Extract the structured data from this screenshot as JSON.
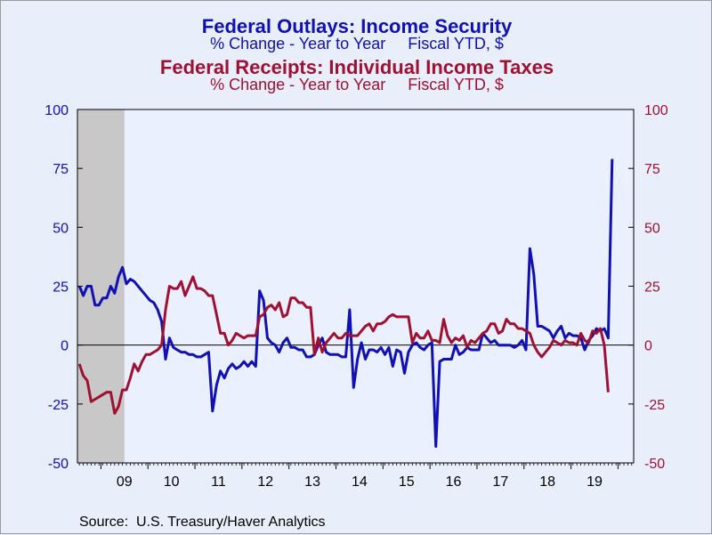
{
  "titles": {
    "series1_title": "Federal Outlays: Income Security",
    "series1_subtitle_left": "% Change - Year to Year",
    "series1_subtitle_right": "Fiscal YTD, $",
    "series2_title": "Federal Receipts: Individual Income Taxes",
    "series2_subtitle_left": "% Change - Year to Year",
    "series2_subtitle_right": "Fiscal YTD, $"
  },
  "source": "Source:  U.S. Treasury/Haver Analytics",
  "colors": {
    "outlays": "#1010b4",
    "receipts": "#a01030",
    "plot_bg": "#ebf0fe",
    "recession": "#c8c8c8"
  },
  "chart_data": {
    "type": "line",
    "x_unit": "month",
    "x_ticks": [
      "09",
      "10",
      "11",
      "12",
      "13",
      "14",
      "15",
      "16",
      "17",
      "18",
      "19"
    ],
    "x_start": "2008-07",
    "x_end": "2020-04",
    "ylim_left": [
      -50,
      100
    ],
    "ylim_right": [
      -50,
      100
    ],
    "y_ticks_left": [
      "100",
      "75",
      "50",
      "25",
      "0",
      "-25",
      "-50"
    ],
    "y_ticks_right": [
      "100",
      "75",
      "50",
      "25",
      "0",
      "-25",
      "-50"
    ],
    "zero_line": true,
    "recession_shading": {
      "start": "2008-07",
      "end": "2009-06"
    },
    "series": [
      {
        "name": "Federal Outlays: Income Security",
        "color": "outlays",
        "axis": "left",
        "points": [
          [
            "2008-07",
            25
          ],
          [
            "2008-08",
            21
          ],
          [
            "2008-09",
            25
          ],
          [
            "2008-10",
            25
          ],
          [
            "2008-11",
            17
          ],
          [
            "2008-12",
            17
          ],
          [
            "2009-01",
            20
          ],
          [
            "2009-02",
            20
          ],
          [
            "2009-03",
            25
          ],
          [
            "2009-04",
            22
          ],
          [
            "2009-05",
            29
          ],
          [
            "2009-06",
            33
          ],
          [
            "2009-07",
            26
          ],
          [
            "2009-08",
            28
          ],
          [
            "2009-09",
            27
          ],
          [
            "2009-10",
            25
          ],
          [
            "2009-11",
            23
          ],
          [
            "2009-12",
            21
          ],
          [
            "2010-01",
            19
          ],
          [
            "2010-02",
            18
          ],
          [
            "2010-03",
            15
          ],
          [
            "2010-04",
            10
          ],
          [
            "2010-05",
            -6
          ],
          [
            "2010-06",
            3
          ],
          [
            "2010-07",
            -1
          ],
          [
            "2010-08",
            -2
          ],
          [
            "2010-09",
            -3
          ],
          [
            "2010-10",
            -3
          ],
          [
            "2010-11",
            -4
          ],
          [
            "2010-12",
            -4
          ],
          [
            "2011-01",
            -5
          ],
          [
            "2011-02",
            -5
          ],
          [
            "2011-03",
            -4
          ],
          [
            "2011-04",
            -3
          ],
          [
            "2011-05",
            -28
          ],
          [
            "2011-06",
            -17
          ],
          [
            "2011-07",
            -11
          ],
          [
            "2011-08",
            -14
          ],
          [
            "2011-09",
            -10
          ],
          [
            "2011-10",
            -8
          ],
          [
            "2011-11",
            -10
          ],
          [
            "2011-12",
            -9
          ],
          [
            "2012-01",
            -7
          ],
          [
            "2012-02",
            -9
          ],
          [
            "2012-03",
            -7
          ],
          [
            "2012-04",
            -9
          ],
          [
            "2012-05",
            23
          ],
          [
            "2012-06",
            19
          ],
          [
            "2012-07",
            3
          ],
          [
            "2012-08",
            1
          ],
          [
            "2012-09",
            0
          ],
          [
            "2012-10",
            -3
          ],
          [
            "2012-11",
            1
          ],
          [
            "2012-12",
            3
          ],
          [
            "2013-01",
            -1
          ],
          [
            "2013-02",
            -1
          ],
          [
            "2013-03",
            -2
          ],
          [
            "2013-04",
            -2
          ],
          [
            "2013-05",
            -5
          ],
          [
            "2013-06",
            -5
          ],
          [
            "2013-07",
            -4
          ],
          [
            "2013-08",
            0
          ],
          [
            "2013-09",
            3
          ],
          [
            "2013-10",
            -3
          ],
          [
            "2013-11",
            -4
          ],
          [
            "2013-12",
            -4
          ],
          [
            "2014-01",
            -4
          ],
          [
            "2014-02",
            -5
          ],
          [
            "2014-03",
            -5
          ],
          [
            "2014-04",
            15
          ],
          [
            "2014-05",
            -18
          ],
          [
            "2014-06",
            -6
          ],
          [
            "2014-07",
            1
          ],
          [
            "2014-08",
            -6
          ],
          [
            "2014-09",
            -2
          ],
          [
            "2014-10",
            -2
          ],
          [
            "2014-11",
            -3
          ],
          [
            "2014-12",
            -1
          ],
          [
            "2015-01",
            -4
          ],
          [
            "2015-02",
            -1
          ],
          [
            "2015-03",
            -9
          ],
          [
            "2015-04",
            -2
          ],
          [
            "2015-05",
            -3
          ],
          [
            "2015-06",
            -12
          ],
          [
            "2015-07",
            -3
          ],
          [
            "2015-08",
            0
          ],
          [
            "2015-09",
            1
          ],
          [
            "2015-10",
            -1
          ],
          [
            "2015-11",
            -2
          ],
          [
            "2015-12",
            0
          ],
          [
            "2016-01",
            1
          ],
          [
            "2016-02",
            -43
          ],
          [
            "2016-03",
            -7
          ],
          [
            "2016-04",
            -6
          ],
          [
            "2016-05",
            -6
          ],
          [
            "2016-06",
            -6
          ],
          [
            "2016-07",
            0
          ],
          [
            "2016-08",
            -4
          ],
          [
            "2016-09",
            -3
          ],
          [
            "2016-10",
            -1
          ],
          [
            "2016-11",
            -2
          ],
          [
            "2016-12",
            -2
          ],
          [
            "2017-01",
            -2
          ],
          [
            "2017-02",
            5
          ],
          [
            "2017-03",
            3
          ],
          [
            "2017-04",
            1
          ],
          [
            "2017-05",
            2
          ],
          [
            "2017-06",
            0
          ],
          [
            "2017-07",
            0
          ],
          [
            "2017-08",
            0
          ],
          [
            "2017-09",
            0
          ],
          [
            "2017-10",
            -1
          ],
          [
            "2017-11",
            0
          ],
          [
            "2017-12",
            2
          ],
          [
            "2018-01",
            -2
          ],
          [
            "2018-02",
            41
          ],
          [
            "2018-03",
            30
          ],
          [
            "2018-04",
            8
          ],
          [
            "2018-05",
            8
          ],
          [
            "2018-06",
            7
          ],
          [
            "2018-07",
            6
          ],
          [
            "2018-08",
            3
          ],
          [
            "2018-09",
            6
          ],
          [
            "2018-10",
            8
          ],
          [
            "2018-11",
            3
          ],
          [
            "2018-12",
            5
          ],
          [
            "2019-01",
            4
          ],
          [
            "2019-02",
            4
          ],
          [
            "2019-03",
            3
          ],
          [
            "2019-04",
            -2
          ],
          [
            "2019-05",
            2
          ],
          [
            "2019-06",
            4
          ],
          [
            "2019-07",
            7
          ],
          [
            "2019-08",
            6
          ],
          [
            "2019-09",
            7
          ],
          [
            "2019-10",
            3
          ],
          [
            "2019-11",
            79
          ]
        ]
      },
      {
        "name": "Federal Receipts: Individual Income Taxes",
        "color": "receipts",
        "axis": "right",
        "points": [
          [
            "2008-07",
            -8
          ],
          [
            "2008-08",
            -13
          ],
          [
            "2008-09",
            -15
          ],
          [
            "2008-10",
            -24
          ],
          [
            "2008-11",
            -23
          ],
          [
            "2008-12",
            -22
          ],
          [
            "2009-01",
            -21
          ],
          [
            "2009-02",
            -20
          ],
          [
            "2009-03",
            -20
          ],
          [
            "2009-04",
            -29
          ],
          [
            "2009-05",
            -26
          ],
          [
            "2009-06",
            -19
          ],
          [
            "2009-07",
            -19
          ],
          [
            "2009-08",
            -14
          ],
          [
            "2009-09",
            -8
          ],
          [
            "2009-10",
            -11
          ],
          [
            "2009-11",
            -7
          ],
          [
            "2009-12",
            -4
          ],
          [
            "2010-01",
            -4
          ],
          [
            "2010-02",
            -3
          ],
          [
            "2010-03",
            -2
          ],
          [
            "2010-04",
            0
          ],
          [
            "2010-05",
            15
          ],
          [
            "2010-06",
            25
          ],
          [
            "2010-07",
            24
          ],
          [
            "2010-08",
            24
          ],
          [
            "2010-09",
            27
          ],
          [
            "2010-10",
            21
          ],
          [
            "2010-11",
            25
          ],
          [
            "2010-12",
            29
          ],
          [
            "2011-01",
            24
          ],
          [
            "2011-02",
            24
          ],
          [
            "2011-03",
            23
          ],
          [
            "2011-04",
            21
          ],
          [
            "2011-05",
            21
          ],
          [
            "2011-06",
            13
          ],
          [
            "2011-07",
            5
          ],
          [
            "2011-08",
            5
          ],
          [
            "2011-09",
            0
          ],
          [
            "2011-10",
            2
          ],
          [
            "2011-11",
            5
          ],
          [
            "2011-12",
            4
          ],
          [
            "2012-01",
            3
          ],
          [
            "2012-02",
            4
          ],
          [
            "2012-03",
            4
          ],
          [
            "2012-04",
            4
          ],
          [
            "2012-05",
            12
          ],
          [
            "2012-06",
            13
          ],
          [
            "2012-07",
            16
          ],
          [
            "2012-08",
            17
          ],
          [
            "2012-09",
            15
          ],
          [
            "2012-10",
            18
          ],
          [
            "2012-11",
            12
          ],
          [
            "2012-12",
            13
          ],
          [
            "2013-01",
            20
          ],
          [
            "2013-02",
            20
          ],
          [
            "2013-03",
            18
          ],
          [
            "2013-04",
            18
          ],
          [
            "2013-05",
            16
          ],
          [
            "2013-06",
            16
          ],
          [
            "2013-07",
            -4
          ],
          [
            "2013-08",
            3
          ],
          [
            "2013-09",
            -3
          ],
          [
            "2013-10",
            1
          ],
          [
            "2013-11",
            3
          ],
          [
            "2013-12",
            5
          ],
          [
            "2014-01",
            3
          ],
          [
            "2014-02",
            3
          ],
          [
            "2014-03",
            5
          ],
          [
            "2014-04",
            4
          ],
          [
            "2014-05",
            4
          ],
          [
            "2014-06",
            4
          ],
          [
            "2014-07",
            6
          ],
          [
            "2014-08",
            8
          ],
          [
            "2014-09",
            9
          ],
          [
            "2014-10",
            6
          ],
          [
            "2014-11",
            9
          ],
          [
            "2014-12",
            9
          ],
          [
            "2015-01",
            10
          ],
          [
            "2015-02",
            12
          ],
          [
            "2015-03",
            13
          ],
          [
            "2015-04",
            12
          ],
          [
            "2015-05",
            12
          ],
          [
            "2015-06",
            12
          ],
          [
            "2015-07",
            12
          ],
          [
            "2015-08",
            1
          ],
          [
            "2015-09",
            5
          ],
          [
            "2015-10",
            3
          ],
          [
            "2015-11",
            3
          ],
          [
            "2015-12",
            6
          ],
          [
            "2016-01",
            2
          ],
          [
            "2016-02",
            2
          ],
          [
            "2016-03",
            1
          ],
          [
            "2016-04",
            11
          ],
          [
            "2016-05",
            4
          ],
          [
            "2016-06",
            1
          ],
          [
            "2016-07",
            3
          ],
          [
            "2016-08",
            2
          ],
          [
            "2016-09",
            4
          ],
          [
            "2016-10",
            -1
          ],
          [
            "2016-11",
            2
          ],
          [
            "2016-12",
            1
          ],
          [
            "2017-01",
            3
          ],
          [
            "2017-02",
            5
          ],
          [
            "2017-03",
            6
          ],
          [
            "2017-04",
            9
          ],
          [
            "2017-05",
            9
          ],
          [
            "2017-06",
            5
          ],
          [
            "2017-07",
            6
          ],
          [
            "2017-08",
            11
          ],
          [
            "2017-09",
            9
          ],
          [
            "2017-10",
            9
          ],
          [
            "2017-11",
            7
          ],
          [
            "2017-12",
            7
          ],
          [
            "2018-01",
            6
          ],
          [
            "2018-02",
            5
          ],
          [
            "2018-03",
            0
          ],
          [
            "2018-04",
            -3
          ],
          [
            "2018-05",
            -5
          ],
          [
            "2018-06",
            -3
          ],
          [
            "2018-07",
            -1
          ],
          [
            "2018-08",
            2
          ],
          [
            "2018-09",
            1
          ],
          [
            "2018-10",
            0
          ],
          [
            "2018-11",
            2
          ],
          [
            "2018-12",
            1
          ],
          [
            "2019-01",
            1
          ],
          [
            "2019-02",
            0
          ],
          [
            "2019-03",
            5
          ],
          [
            "2019-04",
            2
          ],
          [
            "2019-05",
            1
          ],
          [
            "2019-06",
            6
          ],
          [
            "2019-07",
            5
          ],
          [
            "2019-08",
            7
          ],
          [
            "2019-09",
            0
          ],
          [
            "2019-10",
            -20
          ]
        ]
      }
    ],
    "source": "Source:  U.S. Treasury/Haver Analytics"
  }
}
